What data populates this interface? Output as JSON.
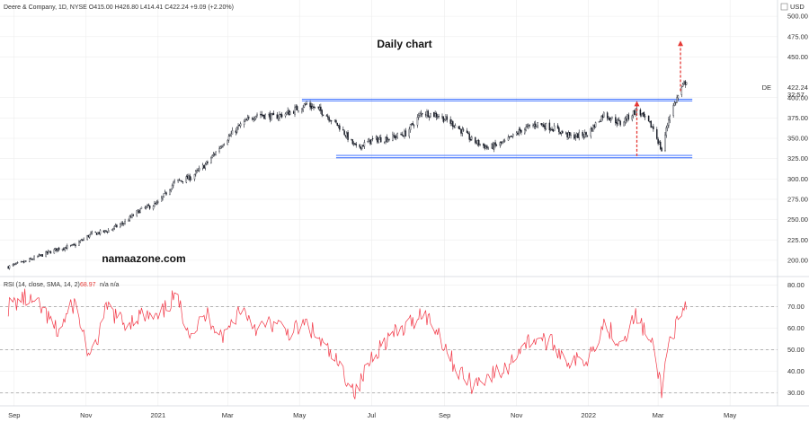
{
  "chart_data": [
    {
      "type": "candlestick",
      "legend": "Deere & Company, 1D, NYSE  O415.00  H426.80  L414.41  C422.24  +9.09 (+2.20%)",
      "title": "Daily chart",
      "watermark": "namaazone.com",
      "currency": "USD",
      "symbol": "DE",
      "last_price": "422.24",
      "countdown": "32:57",
      "ylim": [
        180,
        520
      ],
      "y_ticks": [
        "200.00",
        "225.00",
        "250.00",
        "275.00",
        "300.00",
        "325.00",
        "350.00",
        "375.00",
        "400.00",
        "450.00",
        "475.00",
        "500.00"
      ],
      "x_ticks": [
        "Sep",
        "Nov",
        "2021",
        "Mar",
        "May",
        "Jul",
        "Sep",
        "Nov",
        "2022",
        "Mar",
        "May"
      ],
      "path": [
        [
          "2020-08-27",
          192
        ],
        [
          "2020-09-10",
          198
        ],
        [
          "2020-09-24",
          206
        ],
        [
          "2020-10-08",
          214
        ],
        [
          "2020-10-22",
          218
        ],
        [
          "2020-11-05",
          232
        ],
        [
          "2020-11-19",
          236
        ],
        [
          "2020-12-03",
          246
        ],
        [
          "2020-12-17",
          262
        ],
        [
          "2021-01-01",
          270
        ],
        [
          "2021-01-15",
          296
        ],
        [
          "2021-01-29",
          302
        ],
        [
          "2021-02-12",
          320
        ],
        [
          "2021-02-26",
          346
        ],
        [
          "2021-03-12",
          366
        ],
        [
          "2021-03-26",
          380
        ],
        [
          "2021-04-09",
          376
        ],
        [
          "2021-04-23",
          382
        ],
        [
          "2021-05-07",
          392
        ],
        [
          "2021-05-21",
          382
        ],
        [
          "2021-06-04",
          364
        ],
        [
          "2021-06-18",
          338
        ],
        [
          "2021-07-02",
          348
        ],
        [
          "2021-07-16",
          350
        ],
        [
          "2021-07-30",
          356
        ],
        [
          "2021-08-13",
          382
        ],
        [
          "2021-08-27",
          378
        ],
        [
          "2021-09-10",
          366
        ],
        [
          "2021-09-24",
          348
        ],
        [
          "2021-10-08",
          338
        ],
        [
          "2021-10-22",
          345
        ],
        [
          "2021-11-05",
          360
        ],
        [
          "2021-11-19",
          368
        ],
        [
          "2021-12-03",
          362
        ],
        [
          "2021-12-17",
          352
        ],
        [
          "2021-12-31",
          355
        ],
        [
          "2022-01-14",
          380
        ],
        [
          "2022-01-28",
          368
        ],
        [
          "2022-02-11",
          385
        ],
        [
          "2022-02-25",
          362
        ],
        [
          "2022-03-04",
          335
        ],
        [
          "2022-03-11",
          380
        ],
        [
          "2022-03-18",
          402
        ],
        [
          "2022-03-25",
          422
        ]
      ],
      "range_lines": [
        398,
        396,
        329,
        326
      ],
      "arrows": [
        {
          "x": "2022-02-11",
          "y_from": 328,
          "y_to": 396
        },
        {
          "x": "2022-03-20",
          "y_from": 408,
          "y_to": 470
        }
      ]
    },
    {
      "type": "line",
      "legend_label": "RSI (14, close, SMA, 14, 2)",
      "legend_value": "68.97",
      "legend_na": "n/a  n/a",
      "ylim": [
        24,
        84
      ],
      "y_ticks": [
        "30.00",
        "40.00",
        "50.00",
        "60.00",
        "70.00",
        "80.00"
      ],
      "bands": [
        70,
        50,
        30
      ],
      "path": [
        [
          "2020-08-27",
          70
        ],
        [
          "2020-09-10",
          74
        ],
        [
          "2020-09-24",
          69
        ],
        [
          "2020-10-08",
          58
        ],
        [
          "2020-10-22",
          72
        ],
        [
          "2020-11-05",
          45
        ],
        [
          "2020-11-19",
          70
        ],
        [
          "2020-12-03",
          62
        ],
        [
          "2020-12-17",
          66
        ],
        [
          "2021-01-01",
          64
        ],
        [
          "2021-01-15",
          75
        ],
        [
          "2021-01-29",
          58
        ],
        [
          "2021-02-12",
          66
        ],
        [
          "2021-02-26",
          56
        ],
        [
          "2021-03-12",
          70
        ],
        [
          "2021-03-26",
          60
        ],
        [
          "2021-04-09",
          62
        ],
        [
          "2021-04-23",
          58
        ],
        [
          "2021-05-07",
          62
        ],
        [
          "2021-05-21",
          52
        ],
        [
          "2021-06-04",
          42
        ],
        [
          "2021-06-18",
          30
        ],
        [
          "2021-07-02",
          48
        ],
        [
          "2021-07-16",
          56
        ],
        [
          "2021-07-30",
          60
        ],
        [
          "2021-08-13",
          68
        ],
        [
          "2021-08-27",
          58
        ],
        [
          "2021-09-10",
          42
        ],
        [
          "2021-09-24",
          34
        ],
        [
          "2021-10-08",
          38
        ],
        [
          "2021-10-22",
          40
        ],
        [
          "2021-11-05",
          52
        ],
        [
          "2021-11-19",
          56
        ],
        [
          "2021-12-03",
          52
        ],
        [
          "2021-12-17",
          44
        ],
        [
          "2021-12-31",
          46
        ],
        [
          "2022-01-14",
          62
        ],
        [
          "2022-01-28",
          54
        ],
        [
          "2022-02-11",
          66
        ],
        [
          "2022-02-25",
          50
        ],
        [
          "2022-03-04",
          32
        ],
        [
          "2022-03-11",
          56
        ],
        [
          "2022-03-18",
          62
        ],
        [
          "2022-03-25",
          69
        ]
      ]
    }
  ],
  "colors": {
    "candle": "#131722",
    "range_line": "#2962ff",
    "arrow": "#e53935",
    "rsi_line": "#f23645",
    "grid": "#ededed",
    "band": "#9e9e9e",
    "axis_text": "#333333"
  }
}
